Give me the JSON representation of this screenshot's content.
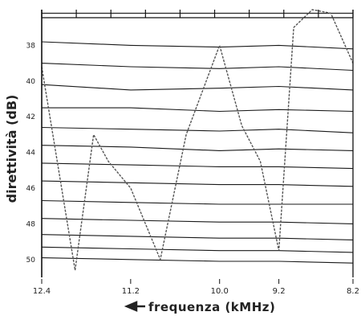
{
  "chart_data": {
    "type": "line",
    "xlabel": "frequenza (kMHz)",
    "ylabel": "direttività (dB)",
    "x_tick_labels": [
      "12.4",
      "11.2",
      "10.0",
      "9.2",
      "8.2"
    ],
    "y_tick_labels": [
      "38",
      "40",
      "42",
      "44",
      "46",
      "48",
      "50"
    ],
    "x_direction": "decreasing",
    "ylim": [
      36,
      51
    ],
    "grid": false,
    "series": [
      {
        "x": [
          12.4,
          11.2,
          10.0,
          9.2,
          8.2
        ],
        "y": [
          36.2,
          36.2,
          36.2,
          36.2,
          36.2
        ]
      },
      {
        "x": [
          12.4,
          11.2,
          10.0,
          9.2,
          8.2
        ],
        "y": [
          37.8,
          38.0,
          38.1,
          38.0,
          38.2
        ]
      },
      {
        "x": [
          12.4,
          11.2,
          10.0,
          9.2,
          8.2
        ],
        "y": [
          39.0,
          39.2,
          39.3,
          39.2,
          39.4
        ]
      },
      {
        "x": [
          12.4,
          11.2,
          10.0,
          9.2,
          8.2
        ],
        "y": [
          40.2,
          40.5,
          40.4,
          40.3,
          40.5
        ]
      },
      {
        "x": [
          12.4,
          11.2,
          10.0,
          9.2,
          8.2
        ],
        "y": [
          41.5,
          41.5,
          41.7,
          41.6,
          41.7
        ]
      },
      {
        "x": [
          12.4,
          11.2,
          10.0,
          9.2,
          8.2
        ],
        "y": [
          42.6,
          42.7,
          42.8,
          42.7,
          42.9
        ]
      },
      {
        "x": [
          12.4,
          11.2,
          10.0,
          9.2,
          8.2
        ],
        "y": [
          43.6,
          43.7,
          43.9,
          43.8,
          43.9
        ]
      },
      {
        "x": [
          12.4,
          11.2,
          10.0,
          9.2,
          8.2
        ],
        "y": [
          44.6,
          44.7,
          44.8,
          44.8,
          44.9
        ]
      },
      {
        "x": [
          12.4,
          11.2,
          10.0,
          9.2,
          8.2
        ],
        "y": [
          45.6,
          45.7,
          45.8,
          45.8,
          45.9
        ]
      },
      {
        "x": [
          12.4,
          11.2,
          10.0,
          9.2,
          8.2
        ],
        "y": [
          46.7,
          46.8,
          46.9,
          46.9,
          46.9
        ]
      },
      {
        "x": [
          12.4,
          11.2,
          10.0,
          9.2,
          8.2
        ],
        "y": [
          47.7,
          47.8,
          47.9,
          47.9,
          48.0
        ]
      },
      {
        "x": [
          12.4,
          11.2,
          10.0,
          9.2,
          8.2
        ],
        "y": [
          48.6,
          48.7,
          48.8,
          48.8,
          48.9
        ]
      },
      {
        "x": [
          12.4,
          11.2,
          10.0,
          9.2,
          8.2
        ],
        "y": [
          49.3,
          49.4,
          49.5,
          49.5,
          49.6
        ]
      },
      {
        "x": [
          12.4,
          11.2,
          10.0,
          9.2,
          8.2
        ],
        "y": [
          49.9,
          50.0,
          50.1,
          50.1,
          50.2
        ]
      },
      {
        "x": [
          12.4,
          11.95,
          11.7,
          11.5,
          11.2,
          10.8,
          10.45,
          10.0,
          9.7,
          9.45,
          9.2,
          9.0,
          8.75,
          8.5,
          8.2
        ],
        "y": [
          39.2,
          50.6,
          43.0,
          44.5,
          46.0,
          50.0,
          43.0,
          38.0,
          42.5,
          44.5,
          49.5,
          37.0,
          36.0,
          36.2,
          39.0
        ]
      }
    ]
  }
}
